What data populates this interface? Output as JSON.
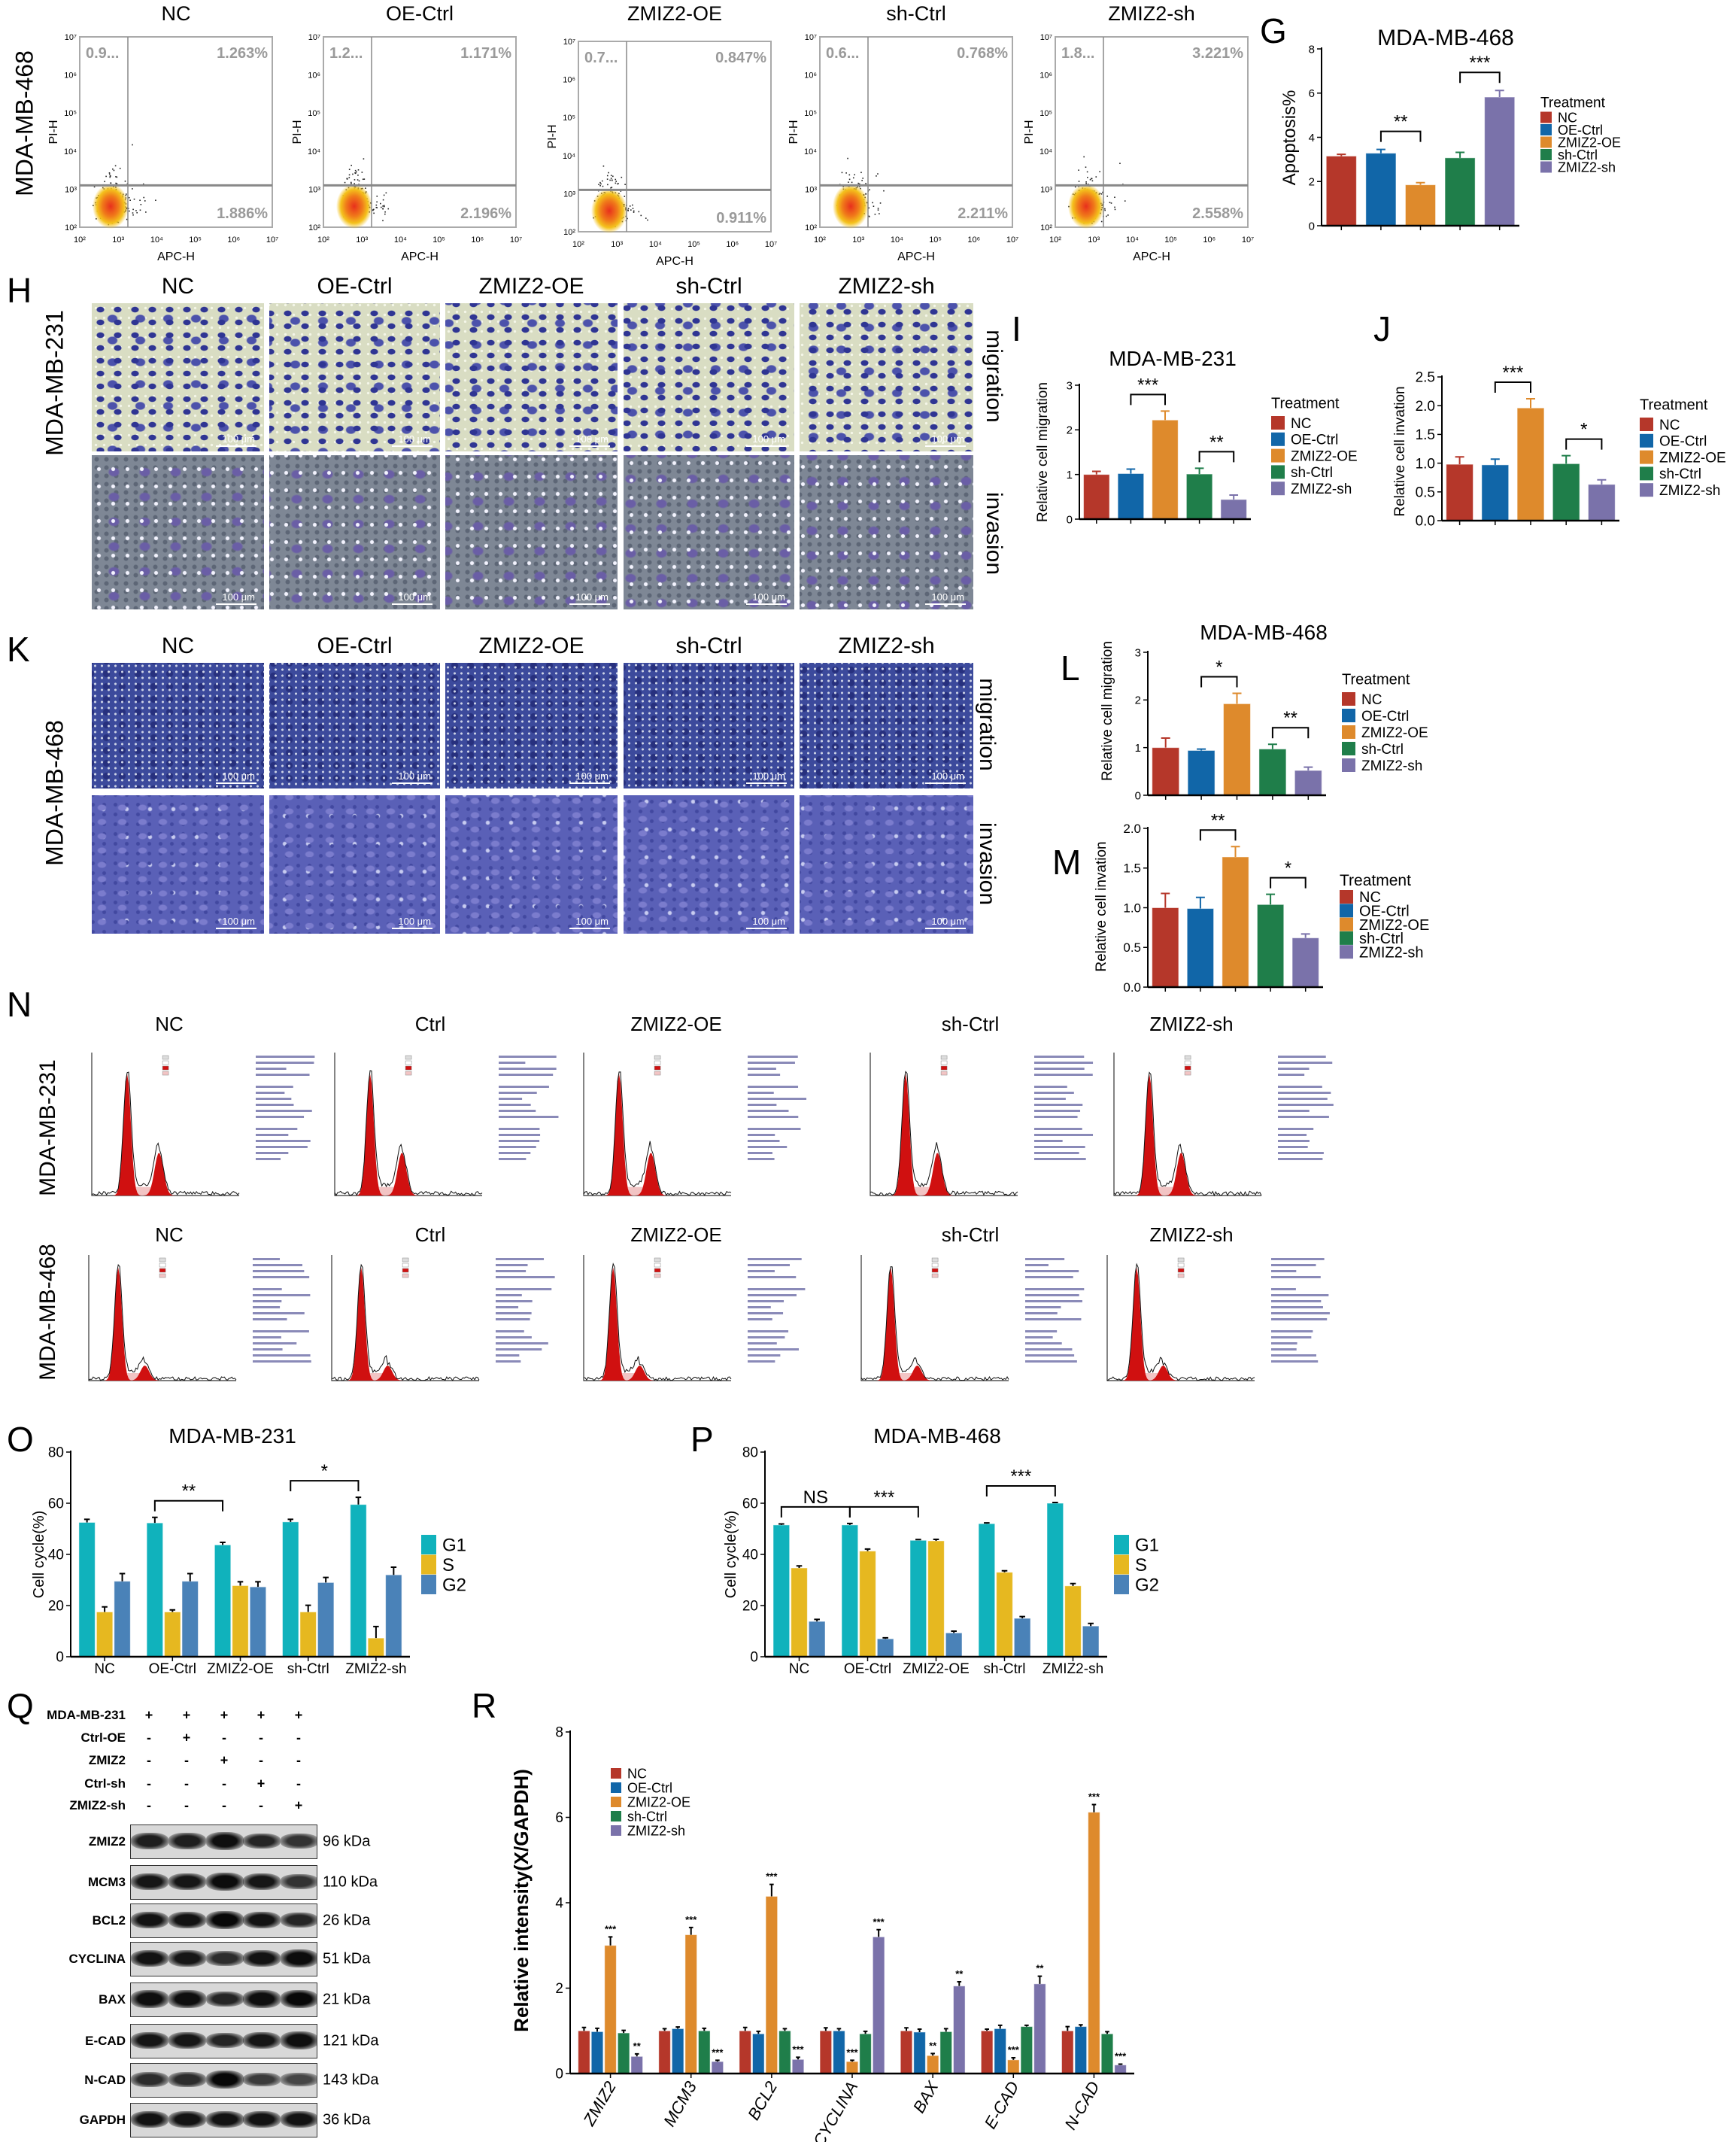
{
  "panel_letters": {
    "G": "G",
    "H": "H",
    "I": "I",
    "J": "J",
    "K": "K",
    "L": "L",
    "M": "M",
    "N": "N",
    "O": "O",
    "P": "P",
    "Q": "Q",
    "R": "R"
  },
  "flow": {
    "row_label": "MDA-MB-468",
    "x_axis": "APC-H",
    "y_axis": "PI-H",
    "x_ticks": [
      "10²",
      "10³",
      "10⁴",
      "10⁵",
      "10⁶",
      "10⁷"
    ],
    "y_ticks": [
      "10²",
      "10³",
      "10⁴",
      "10⁵",
      "10⁶",
      "10⁷"
    ],
    "panels": [
      {
        "title": "NC",
        "ul": "0.9...",
        "ur": "1.263%",
        "lr": "1.886%"
      },
      {
        "title": "OE-Ctrl",
        "ul": "1.2...",
        "ur": "1.171%",
        "lr": "2.196%"
      },
      {
        "title": "ZMIZ2-OE",
        "ul": "0.7...",
        "ur": "0.847%",
        "lr": "0.911%"
      },
      {
        "title": "sh-Ctrl",
        "ul": "0.6...",
        "ur": "0.768%",
        "lr": "2.211%"
      },
      {
        "title": "ZMIZ2-sh",
        "ul": "1.8...",
        "ur": "3.221%",
        "lr": "2.558%"
      }
    ]
  },
  "transwell": {
    "scale_bar": "100 μm",
    "row_labels": [
      "migration",
      "invasion"
    ],
    "H": {
      "cell_line": "MDA-MB-231",
      "columns": [
        "NC",
        "OE-Ctrl",
        "ZMIZ2-OE",
        "sh-Ctrl",
        "ZMIZ2-sh"
      ]
    },
    "K": {
      "cell_line": "MDA-MB-468",
      "columns": [
        "NC",
        "OE-Ctrl",
        "ZMIZ2-OE",
        "sh-Ctrl",
        "ZMIZ2-sh"
      ]
    }
  },
  "histograms": {
    "rows": [
      {
        "cell_line": "MDA-MB-231",
        "columns": [
          "NC",
          "Ctrl",
          "ZMIZ2-OE",
          "sh-Ctrl",
          "ZMIZ2-sh"
        ]
      },
      {
        "cell_line": "MDA-MB-468",
        "columns": [
          "NC",
          "Ctrl",
          "ZMIZ2-OE",
          "sh-Ctrl",
          "ZMIZ2-sh"
        ]
      }
    ]
  },
  "western": {
    "conditions": [
      {
        "label": "MDA-MB-231",
        "lanes": [
          "+",
          "+",
          "+",
          "+",
          "+"
        ]
      },
      {
        "label": "Ctrl-OE",
        "lanes": [
          "-",
          "+",
          "-",
          "-",
          "-"
        ]
      },
      {
        "label": "ZMIZ2",
        "lanes": [
          "-",
          "-",
          "+",
          "-",
          "-"
        ]
      },
      {
        "label": "Ctrl-sh",
        "lanes": [
          "-",
          "-",
          "-",
          "+",
          "-"
        ]
      },
      {
        "label": "ZMIZ2-sh",
        "lanes": [
          "-",
          "-",
          "-",
          "-",
          "+"
        ]
      }
    ],
    "proteins": [
      {
        "name": "ZMIZ2",
        "kda": "96 kDa"
      },
      {
        "name": "MCM3",
        "kda": "110 kDa"
      },
      {
        "name": "BCL2",
        "kda": "26 kDa"
      },
      {
        "name": "CYCLINA",
        "kda": "51 kDa"
      },
      {
        "name": "BAX",
        "kda": "21 kDa"
      },
      {
        "name": "E-CAD",
        "kda": "121 kDa"
      },
      {
        "name": "N-CAD",
        "kda": "143 kDa"
      },
      {
        "name": "GAPDH",
        "kda": "36 kDa"
      }
    ]
  },
  "chart_data": [
    {
      "id": "G",
      "type": "bar",
      "title": "MDA-MB-468",
      "xlabel": "",
      "ylabel": "Apoptosis%",
      "categories": [
        "NC",
        "OE-Ctrl",
        "ZMIZ2-OE",
        "sh-Ctrl",
        "ZMIZ2-sh"
      ],
      "values": [
        3.15,
        3.28,
        1.85,
        3.07,
        5.82
      ],
      "errors": [
        0.08,
        0.17,
        0.1,
        0.25,
        0.3
      ],
      "colors": [
        "#b5372a",
        "#1166a8",
        "#de8a2c",
        "#1f7e4a",
        "#7a72aa"
      ],
      "ylim": [
        0,
        8
      ],
      "yticks": [
        0,
        2,
        4,
        6,
        8
      ],
      "ytick_labels": [
        "0",
        "2",
        "4",
        "6",
        "8"
      ],
      "legend_title": "Treatment",
      "legend_placement": "right",
      "grid": false,
      "significance": [
        {
          "from": 1,
          "to": 2,
          "label": "**"
        },
        {
          "from": 3,
          "to": 4,
          "label": "***"
        }
      ]
    },
    {
      "id": "I",
      "type": "bar",
      "title": "MDA-MB-231",
      "xlabel": "",
      "ylabel": "Relative cell migration",
      "categories": [
        "NC",
        "OE-Ctrl",
        "ZMIZ2-OE",
        "sh-Ctrl",
        "ZMIZ2-sh"
      ],
      "values": [
        1.0,
        1.02,
        2.22,
        1.01,
        0.44
      ],
      "errors": [
        0.07,
        0.1,
        0.2,
        0.13,
        0.1
      ],
      "colors": [
        "#b5372a",
        "#1166a8",
        "#de8a2c",
        "#1f7e4a",
        "#7a72aa"
      ],
      "ylim": [
        0,
        3
      ],
      "yticks": [
        0,
        1,
        2,
        3
      ],
      "ytick_labels": [
        "0",
        "1",
        "2",
        "3"
      ],
      "legend_title": "Treatment",
      "legend_placement": "right",
      "grid": false,
      "significance": [
        {
          "from": 1,
          "to": 2,
          "label": "***"
        },
        {
          "from": 3,
          "to": 4,
          "label": "**"
        }
      ]
    },
    {
      "id": "J",
      "type": "bar",
      "title": "",
      "xlabel": "",
      "ylabel": "Relative cell invation",
      "categories": [
        "NC",
        "OE-Ctrl",
        "ZMIZ2-OE",
        "sh-Ctrl",
        "ZMIZ2-sh"
      ],
      "values": [
        0.98,
        0.97,
        1.96,
        0.99,
        0.63
      ],
      "errors": [
        0.13,
        0.1,
        0.16,
        0.14,
        0.08
      ],
      "colors": [
        "#b5372a",
        "#1166a8",
        "#de8a2c",
        "#1f7e4a",
        "#7a72aa"
      ],
      "ylim": [
        0,
        2.5
      ],
      "yticks": [
        0,
        0.5,
        1,
        1.5,
        2,
        2.5
      ],
      "ytick_labels": [
        "0.0",
        "0.5",
        "1.0",
        "1.5",
        "2.0",
        "2.5"
      ],
      "legend_title": "Treatment",
      "legend_placement": "right",
      "grid": false,
      "significance": [
        {
          "from": 1,
          "to": 2,
          "label": "***"
        },
        {
          "from": 3,
          "to": 4,
          "label": "*"
        }
      ]
    },
    {
      "id": "L",
      "type": "bar",
      "title": "MDA-MB-468",
      "xlabel": "",
      "ylabel": "Relative cell migration",
      "categories": [
        "NC",
        "OE-Ctrl",
        "ZMIZ2-OE",
        "sh-Ctrl",
        "ZMIZ2-sh"
      ],
      "values": [
        1.0,
        0.94,
        1.92,
        0.97,
        0.52
      ],
      "errors": [
        0.2,
        0.03,
        0.22,
        0.1,
        0.07
      ],
      "colors": [
        "#b5372a",
        "#1166a8",
        "#de8a2c",
        "#1f7e4a",
        "#7a72aa"
      ],
      "ylim": [
        0,
        3
      ],
      "yticks": [
        0,
        1,
        2,
        3
      ],
      "ytick_labels": [
        "0",
        "1",
        "2",
        "3"
      ],
      "legend_title": "Treatment",
      "legend_placement": "right",
      "grid": false,
      "significance": [
        {
          "from": 1,
          "to": 2,
          "label": "*"
        },
        {
          "from": 3,
          "to": 4,
          "label": "**"
        }
      ]
    },
    {
      "id": "M",
      "type": "bar",
      "title": "",
      "xlabel": "",
      "ylabel": "Relative cell invation",
      "categories": [
        "NC",
        "OE-Ctrl",
        "ZMIZ2-OE",
        "sh-Ctrl",
        "ZMIZ2-sh"
      ],
      "values": [
        1.0,
        0.99,
        1.64,
        1.04,
        0.62
      ],
      "errors": [
        0.18,
        0.14,
        0.13,
        0.13,
        0.05
      ],
      "colors": [
        "#b5372a",
        "#1166a8",
        "#de8a2c",
        "#1f7e4a",
        "#7a72aa"
      ],
      "ylim": [
        0,
        2
      ],
      "yticks": [
        0,
        0.5,
        1,
        1.5,
        2
      ],
      "ytick_labels": [
        "0.0",
        "0.5",
        "1.0",
        "1.5",
        "2.0"
      ],
      "legend_title": "Treatment",
      "legend_placement": "right",
      "grid": false,
      "significance": [
        {
          "from": 1,
          "to": 2,
          "label": "**"
        },
        {
          "from": 3,
          "to": 4,
          "label": "*"
        }
      ]
    },
    {
      "id": "O",
      "type": "bar",
      "title": "MDA-MB-231",
      "xlabel": "",
      "ylabel": "Cell cycle(%)",
      "categories": [
        "NC",
        "OE-Ctrl",
        "ZMIZ2-OE",
        "sh-Ctrl",
        "ZMIZ2-sh"
      ],
      "series": [
        {
          "name": "G1",
          "color": "#10b2bc",
          "values": [
            52.5,
            52.3,
            43.7,
            52.7,
            59.5
          ],
          "errors": [
            1.2,
            2.2,
            1.0,
            1.0,
            2.8
          ]
        },
        {
          "name": "S",
          "color": "#e6b820",
          "values": [
            17.5,
            17.5,
            27.8,
            17.5,
            7.3
          ],
          "errors": [
            2.0,
            0.8,
            1.5,
            2.6,
            4.5
          ]
        },
        {
          "name": "G2",
          "color": "#4a82b8",
          "values": [
            29.5,
            29.5,
            27.3,
            29.0,
            32.0
          ],
          "errors": [
            3.0,
            3.0,
            2.0,
            2.0,
            3.0
          ]
        }
      ],
      "ylim": [
        0,
        80
      ],
      "yticks": [
        0,
        20,
        40,
        60,
        80
      ],
      "ytick_labels": [
        "0",
        "20",
        "40",
        "60",
        "80"
      ],
      "legend_placement": "right",
      "grid": false,
      "significance": [
        {
          "from": 1,
          "to": 2,
          "series": 0,
          "label": "**"
        },
        {
          "from": 3,
          "to": 4,
          "series": 0,
          "label": "*"
        }
      ]
    },
    {
      "id": "P",
      "type": "bar",
      "title": "MDA-MB-468",
      "xlabel": "",
      "ylabel": "Cell cycle(%)",
      "categories": [
        "NC",
        "OE-Ctrl",
        "ZMIZ2-OE",
        "sh-Ctrl",
        "ZMIZ2-sh"
      ],
      "series": [
        {
          "name": "G1",
          "color": "#10b2bc",
          "values": [
            51.5,
            51.5,
            45.5,
            52.0,
            60.0
          ],
          "errors": [
            0.4,
            0.6,
            0.3,
            0.3,
            0.3
          ]
        },
        {
          "name": "S",
          "color": "#e6b820",
          "values": [
            34.7,
            41.3,
            45.3,
            33.0,
            27.7
          ],
          "errors": [
            0.8,
            0.8,
            0.6,
            0.6,
            0.9
          ]
        },
        {
          "name": "G2",
          "color": "#4a82b8",
          "values": [
            13.8,
            7.0,
            9.3,
            15.0,
            12.0
          ],
          "errors": [
            0.8,
            0.4,
            0.7,
            0.7,
            1.0
          ]
        }
      ],
      "ylim": [
        0,
        80
      ],
      "yticks": [
        0,
        20,
        40,
        60,
        80
      ],
      "ytick_labels": [
        "0",
        "20",
        "40",
        "60",
        "80"
      ],
      "legend_placement": "right",
      "grid": false,
      "significance": [
        {
          "from": 0,
          "to": 1,
          "series": 0,
          "label": "NS"
        },
        {
          "from": 1,
          "to": 2,
          "series": 0,
          "label": "***"
        },
        {
          "from": 3,
          "to": 4,
          "series": 0,
          "label": "***"
        }
      ]
    },
    {
      "id": "R",
      "type": "bar",
      "title": "",
      "xlabel": "",
      "ylabel": "Relative intensity(X/GAPDH)",
      "categories": [
        "ZMIZ2",
        "MCM3",
        "BCL2",
        "CYCLINA",
        "BAX",
        "E-CAD",
        "N-CAD"
      ],
      "series": [
        {
          "name": "NC",
          "color": "#b5372a",
          "values": [
            1.0,
            1.0,
            1.0,
            1.0,
            1.0,
            1.0,
            1.0
          ],
          "errors": [
            0.08,
            0.05,
            0.08,
            0.07,
            0.07,
            0.04,
            0.1
          ],
          "labels": [
            "",
            "",
            "",
            "",
            "",
            "",
            ""
          ]
        },
        {
          "name": "OE-Ctrl",
          "color": "#1166a8",
          "values": [
            0.98,
            1.05,
            0.93,
            1.0,
            0.97,
            1.05,
            1.1
          ],
          "errors": [
            0.08,
            0.04,
            0.06,
            0.05,
            0.07,
            0.08,
            0.04
          ],
          "labels": [
            "",
            "",
            "",
            "",
            "",
            "",
            ""
          ]
        },
        {
          "name": "ZMIZ2-OE",
          "color": "#de8a2c",
          "values": [
            3.0,
            3.25,
            4.15,
            0.28,
            0.42,
            0.32,
            6.12
          ],
          "errors": [
            0.2,
            0.17,
            0.28,
            0.03,
            0.05,
            0.05,
            0.18
          ],
          "labels": [
            "***",
            "***",
            "***",
            "***",
            "**",
            "***",
            "***"
          ]
        },
        {
          "name": "sh-Ctrl",
          "color": "#1f7e4a",
          "values": [
            0.95,
            1.0,
            1.0,
            0.93,
            0.98,
            1.1,
            0.93
          ],
          "errors": [
            0.06,
            0.06,
            0.05,
            0.06,
            0.07,
            0.03,
            0.05
          ],
          "labels": [
            "",
            "",
            "",
            "",
            "",
            "",
            ""
          ]
        },
        {
          "name": "ZMIZ2-sh",
          "color": "#7a72aa",
          "values": [
            0.4,
            0.28,
            0.33,
            3.2,
            2.05,
            2.1,
            0.2
          ],
          "errors": [
            0.06,
            0.03,
            0.05,
            0.17,
            0.1,
            0.18,
            0.02
          ],
          "labels": [
            "**",
            "***",
            "***",
            "***",
            "**",
            "**",
            "***"
          ]
        }
      ],
      "ylim": [
        0,
        8
      ],
      "yticks": [
        0,
        2,
        4,
        6,
        8
      ],
      "ytick_labels": [
        "0",
        "2",
        "4",
        "6",
        "8"
      ],
      "legend_placement": "top-left",
      "grid": false,
      "significance": []
    }
  ]
}
